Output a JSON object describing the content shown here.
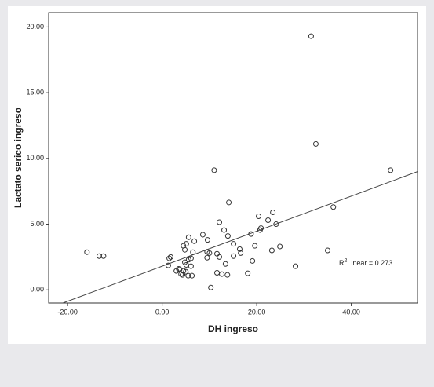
{
  "chart_data": {
    "type": "scatter",
    "x_label": "DH ingreso",
    "y_label": "Lactato serico ingreso",
    "annotation": {
      "base": "R",
      "sup": "2",
      "text": "Linear = 0.273"
    },
    "xlim": [
      -24,
      54
    ],
    "ylim": [
      -1,
      21.1
    ],
    "xticks": [
      {
        "value": -20,
        "label": "-20.00"
      },
      {
        "value": 0,
        "label": "0.00"
      },
      {
        "value": 20,
        "label": "20.00"
      },
      {
        "value": 40,
        "label": "40.00"
      }
    ],
    "yticks": [
      {
        "value": 0,
        "label": "0.00"
      },
      {
        "value": 5,
        "label": "5.00"
      },
      {
        "value": 10,
        "label": "10.00"
      },
      {
        "value": 15,
        "label": "15.00"
      },
      {
        "value": 20,
        "label": "20.00"
      }
    ],
    "color": "#333333",
    "fit_line": {
      "x": [
        -21,
        54
      ],
      "y": [
        -1.0,
        9.0
      ],
      "color": "#444444"
    },
    "x": [
      -15.9,
      -13.3,
      -12.4,
      31.5,
      32.5,
      48.3,
      36.2,
      35.0,
      11.0,
      14.1,
      23.4,
      20.4,
      22.4,
      24.1,
      12.1,
      20.9,
      20.7,
      13.1,
      18.8,
      13.9,
      8.6,
      5.6,
      9.6,
      6.8,
      15.1,
      19.6,
      24.9,
      5.1,
      4.5,
      4.8,
      16.4,
      23.2,
      9.5,
      6.5,
      16.6,
      11.6,
      10.0,
      15.1,
      1.8,
      1.5,
      12.1,
      9.5,
      6.1,
      5.6,
      4.8,
      19.1,
      5.1,
      13.4,
      1.3,
      6.1,
      28.2,
      3.5,
      3.0,
      4.5,
      5.0,
      4.3,
      11.6,
      18.1,
      12.6,
      13.8,
      5.5,
      6.3,
      4.0,
      10.3,
      3.7
    ],
    "y": [
      2.87,
      2.57,
      2.57,
      19.3,
      11.1,
      9.1,
      6.3,
      3.0,
      9.1,
      6.65,
      5.9,
      5.6,
      5.3,
      5.0,
      5.15,
      4.7,
      4.55,
      4.55,
      4.25,
      4.1,
      4.2,
      4.0,
      3.8,
      3.7,
      3.5,
      3.35,
      3.3,
      3.5,
      3.35,
      3.05,
      3.1,
      3.0,
      2.9,
      2.87,
      2.8,
      2.75,
      2.8,
      2.57,
      2.5,
      2.4,
      2.5,
      2.45,
      2.4,
      2.3,
      2.1,
      2.2,
      1.9,
      1.97,
      1.86,
      1.8,
      1.8,
      1.6,
      1.44,
      1.44,
      1.38,
      1.14,
      1.3,
      1.26,
      1.2,
      1.14,
      1.08,
      1.08,
      1.2,
      0.18,
      1.56
    ]
  }
}
